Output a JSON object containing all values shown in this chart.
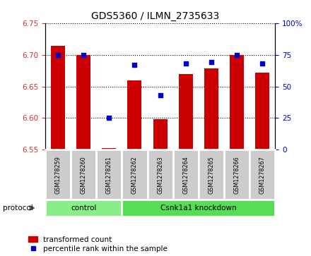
{
  "title": "GDS5360 / ILMN_2735633",
  "samples": [
    "GSM1278259",
    "GSM1278260",
    "GSM1278261",
    "GSM1278262",
    "GSM1278263",
    "GSM1278264",
    "GSM1278265",
    "GSM1278266",
    "GSM1278267"
  ],
  "transformed_count": [
    6.714,
    6.7,
    6.553,
    6.66,
    6.598,
    6.67,
    6.678,
    6.7,
    6.672
  ],
  "percentile_rank": [
    75,
    75,
    25,
    67,
    43,
    68,
    69,
    75,
    68
  ],
  "ylim_left": [
    6.55,
    6.75
  ],
  "ylim_right": [
    0,
    100
  ],
  "yticks_left": [
    6.55,
    6.6,
    6.65,
    6.7,
    6.75
  ],
  "yticks_right": [
    0,
    25,
    50,
    75,
    100
  ],
  "bar_color": "#cc0000",
  "dot_color": "#0000cc",
  "bar_bottom": 6.55,
  "groups": [
    {
      "label": "control",
      "start": 0,
      "end": 3,
      "color": "#88ee88"
    },
    {
      "label": "Csnk1a1 knockdown",
      "start": 3,
      "end": 9,
      "color": "#55dd55"
    }
  ],
  "protocol_label": "protocol",
  "legend_bar_label": "transformed count",
  "legend_dot_label": "percentile rank within the sample",
  "tick_label_color_left": "#cc3333",
  "tick_label_color_right": "#0000cc",
  "sample_bg_color": "#cccccc",
  "title_fontsize": 10
}
